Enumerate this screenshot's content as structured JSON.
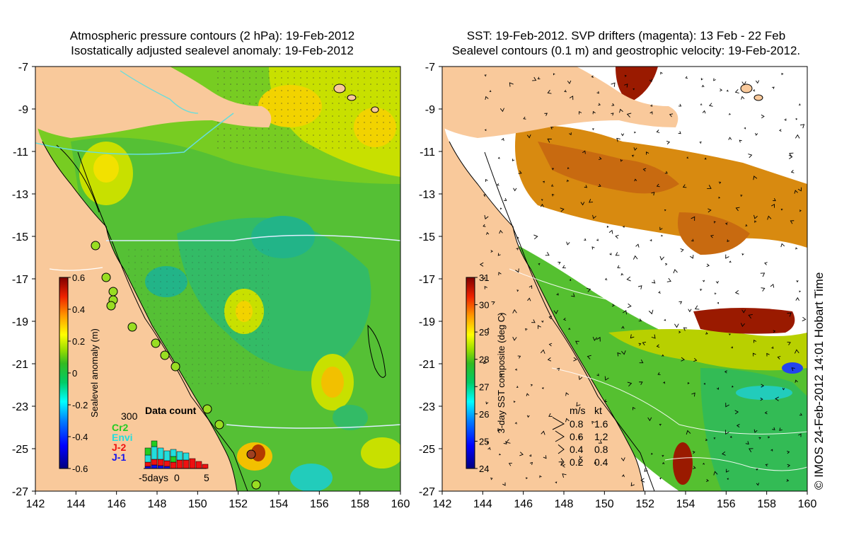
{
  "left_panel": {
    "title_line1": "Atmospheric pressure contours (2 hPa): 19-Feb-2012",
    "title_line2": "Isostatically adjusted sealevel anomaly: 19-Feb-2012",
    "colorbar_label": "Sealevel anomaly (m)",
    "colorbar_ticks": [
      "0.6",
      "0.4",
      "0.2",
      "0",
      "-0.2",
      "-0.4",
      "-0.6"
    ],
    "colorbar_colors": [
      "#00007f",
      "#0000ff",
      "#007fff",
      "#00ffff",
      "#00dd55",
      "#22bb22",
      "#88dd00",
      "#ffff00",
      "#ff9900",
      "#ff0000",
      "#7f0000"
    ],
    "x_ticks": [
      "142",
      "144",
      "146",
      "148",
      "150",
      "152",
      "154",
      "156",
      "158",
      "160"
    ],
    "y_ticks": [
      "-7",
      "-9",
      "-11",
      "-13",
      "-15",
      "-17",
      "-19",
      "-21",
      "-23",
      "-25",
      "-27"
    ],
    "data_count": {
      "title": "Data count",
      "max_label": "300",
      "legend": [
        {
          "name": "Cr2",
          "color": "#22cc22"
        },
        {
          "name": "Envi",
          "color": "#22dddd"
        },
        {
          "name": "J-2",
          "color": "#ee1111"
        },
        {
          "name": "J-1",
          "color": "#1111ee"
        }
      ],
      "x_label_left": "-5days",
      "x_label_mid": "0",
      "x_label_right": "5"
    }
  },
  "right_panel": {
    "title_line1": "SST: 19-Feb-2012. SVP drifters (magenta): 13 Feb - 22 Feb",
    "title_line2": "Sealevel contours (0.1 m) and geostrophic velocity: 19-Feb-2012.",
    "colorbar_label": "3-day SST composite (deg C)",
    "colorbar_ticks": [
      "31",
      "30",
      "29",
      "28",
      "27",
      "26",
      "25",
      "24"
    ],
    "colorbar_colors": [
      "#00007f",
      "#0000ff",
      "#007fff",
      "#00ffff",
      "#00dd55",
      "#22bb22",
      "#88dd00",
      "#ffff00",
      "#ff9900",
      "#ff0000",
      "#7f0000"
    ],
    "x_ticks": [
      "142",
      "144",
      "146",
      "148",
      "150",
      "152",
      "154",
      "156",
      "158",
      "160"
    ],
    "y_ticks": [
      "-7",
      "-9",
      "-11",
      "-13",
      "-15",
      "-17",
      "-19",
      "-21",
      "-23",
      "-25",
      "-27"
    ],
    "velocity_legend": {
      "header_ms": "m/s",
      "header_kt": "kt",
      "rows": [
        {
          "ms": "0.8",
          "kt": "1.6"
        },
        {
          "ms": "0.6",
          "kt": "1.2"
        },
        {
          "ms": "0.4",
          "kt": "0.8"
        },
        {
          "ms": "0.2",
          "kt": "0.4"
        }
      ]
    }
  },
  "copyright": "© IMOS 24-Feb-2012 14:01 Hobart Time",
  "colors": {
    "land": "#f9c99b",
    "no_data": "#ffffff"
  }
}
